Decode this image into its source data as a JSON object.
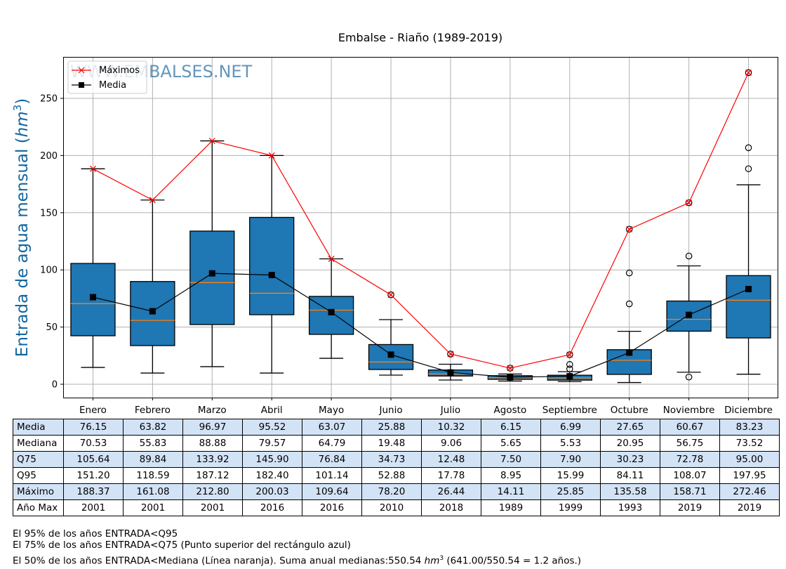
{
  "chart_data": {
    "type": "boxplot",
    "title": "Embalse - Riaño (1989-2019)",
    "ylabel": "Entrada de agua mensual",
    "ylabel_unit": "hm",
    "ylabel_unit_exp": "3",
    "ylim": [
      -12,
      286
    ],
    "yticks": [
      0,
      50,
      100,
      150,
      200,
      250
    ],
    "grid": true,
    "legend_position": "top-left",
    "watermark": "WWW.EMBALSES.NET",
    "legend": [
      {
        "label": "Máximos",
        "color": "#ff0000",
        "marker": "x"
      },
      {
        "label": "Media",
        "color": "#000000",
        "marker": "square"
      }
    ],
    "categories": [
      "Enero",
      "Febrero",
      "Marzo",
      "Abril",
      "Mayo",
      "Junio",
      "Julio",
      "Agosto",
      "Septiembre",
      "Octubre",
      "Noviembre",
      "Diciembre"
    ],
    "box_color": "#1f77b4",
    "median_color": "#ff7f0e",
    "boxes": [
      {
        "whislo": 14.7,
        "q1": 42.4,
        "med": 70.53,
        "q3": 105.64,
        "whishi": 188.37,
        "fliers": []
      },
      {
        "whislo": 9.8,
        "q1": 33.8,
        "med": 55.83,
        "q3": 89.84,
        "whishi": 161.08,
        "fliers": []
      },
      {
        "whislo": 15.4,
        "q1": 52.2,
        "med": 88.88,
        "q3": 133.92,
        "whishi": 212.8,
        "fliers": []
      },
      {
        "whislo": 9.8,
        "q1": 60.8,
        "med": 79.57,
        "q3": 145.9,
        "whishi": 200.03,
        "fliers": []
      },
      {
        "whislo": 22.7,
        "q1": 43.6,
        "med": 64.79,
        "q3": 76.84,
        "whishi": 109.64,
        "fliers": []
      },
      {
        "whislo": 8.0,
        "q1": 12.9,
        "med": 19.48,
        "q3": 34.73,
        "whishi": 56.5,
        "fliers": [
          78.2
        ]
      },
      {
        "whislo": 3.7,
        "q1": 7.2,
        "med": 9.06,
        "q3": 12.48,
        "whishi": 17.5,
        "fliers": [
          26.44
        ]
      },
      {
        "whislo": 2.8,
        "q1": 4.3,
        "med": 5.65,
        "q3": 7.5,
        "whishi": 8.95,
        "fliers": [
          14.11
        ]
      },
      {
        "whislo": 2.3,
        "q1": 3.6,
        "med": 5.53,
        "q3": 7.9,
        "whishi": 11.0,
        "fliers": [
          13.5,
          17.3,
          25.85
        ]
      },
      {
        "whislo": 1.5,
        "q1": 8.6,
        "med": 20.95,
        "q3": 30.23,
        "whishi": 46.3,
        "fliers": [
          70.3,
          97.3,
          135.58
        ]
      },
      {
        "whislo": 10.5,
        "q1": 46.4,
        "med": 56.75,
        "q3": 72.78,
        "whishi": 103.5,
        "fliers": [
          6.3,
          112.1,
          158.71
        ]
      },
      {
        "whislo": 8.8,
        "q1": 40.5,
        "med": 73.52,
        "q3": 95.0,
        "whishi": 174.4,
        "fliers": [
          188.4,
          206.8,
          272.46
        ]
      }
    ],
    "series": [
      {
        "name": "Máximos",
        "values": [
          188.37,
          161.08,
          212.8,
          200.03,
          109.64,
          78.2,
          26.44,
          14.11,
          25.85,
          135.58,
          158.71,
          272.46
        ]
      },
      {
        "name": "Media",
        "values": [
          76.15,
          63.82,
          96.97,
          95.52,
          63.07,
          25.88,
          10.32,
          6.15,
          6.99,
          27.65,
          60.67,
          83.23
        ]
      }
    ]
  },
  "table": {
    "columns": [
      "Enero",
      "Febrero",
      "Marzo",
      "Abril",
      "Mayo",
      "Junio",
      "Julio",
      "Agosto",
      "Septiembre",
      "Octubre",
      "Noviembre",
      "Diciembre"
    ],
    "rows": [
      {
        "label": "Media",
        "values": [
          "76.15",
          "63.82",
          "96.97",
          "95.52",
          "63.07",
          "25.88",
          "10.32",
          "6.15",
          "6.99",
          "27.65",
          "60.67",
          "83.23"
        ]
      },
      {
        "label": "Mediana",
        "values": [
          "70.53",
          "55.83",
          "88.88",
          "79.57",
          "64.79",
          "19.48",
          "9.06",
          "5.65",
          "5.53",
          "20.95",
          "56.75",
          "73.52"
        ]
      },
      {
        "label": "Q75",
        "values": [
          "105.64",
          "89.84",
          "133.92",
          "145.90",
          "76.84",
          "34.73",
          "12.48",
          "7.50",
          "7.90",
          "30.23",
          "72.78",
          "95.00"
        ]
      },
      {
        "label": "Q95",
        "values": [
          "151.20",
          "118.59",
          "187.12",
          "182.40",
          "101.14",
          "52.88",
          "17.78",
          "8.95",
          "15.99",
          "84.11",
          "108.07",
          "197.95"
        ]
      },
      {
        "label": "Máximo",
        "values": [
          "188.37",
          "161.08",
          "212.80",
          "200.03",
          "109.64",
          "78.20",
          "26.44",
          "14.11",
          "25.85",
          "135.58",
          "158.71",
          "272.46"
        ]
      },
      {
        "label": "Año Max",
        "values": [
          "2001",
          "2001",
          "2001",
          "2016",
          "2016",
          "2010",
          "2018",
          "1989",
          "1999",
          "1993",
          "2019",
          "2019"
        ]
      }
    ]
  },
  "notes": {
    "line1": "El 95% de los años ENTRADA<Q95",
    "line2": "El 75% de los años ENTRADA<Q75 (Punto superior del rectángulo azul)",
    "line3_a": "El 50% de los años ENTRADA<Mediana (Línea naranja). Suma anual medianas:550.54 ",
    "line3_unit": "hm",
    "line3_exp": "3",
    "line3_b": " (641.00/550.54 = 1.2 años.)"
  }
}
